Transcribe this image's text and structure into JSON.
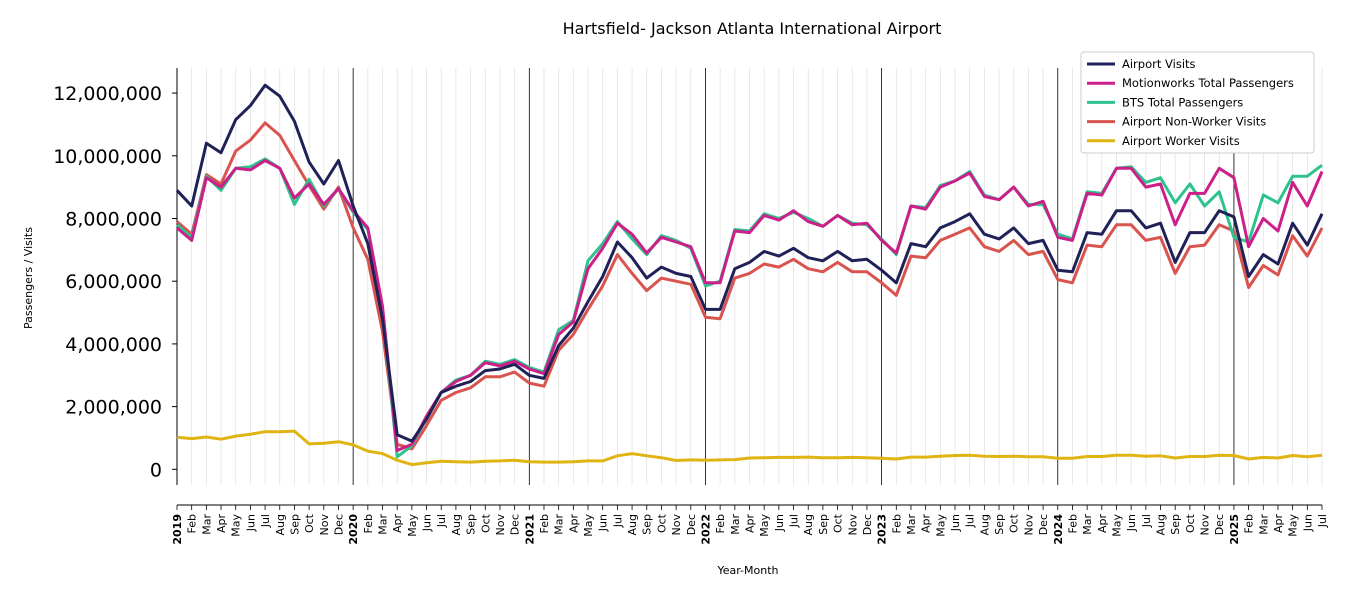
{
  "chart_data": {
    "type": "line",
    "title": "Hartsfield- Jackson Atlanta International Airport",
    "xlabel": "Year-Month",
    "ylabel": "Passengers / Visits",
    "ylim": [
      -500000,
      12800000
    ],
    "yticks": [
      0,
      2000000,
      4000000,
      6000000,
      8000000,
      10000000,
      12000000
    ],
    "ytick_labels": [
      "0",
      "2,000,000",
      "4,000,000",
      "6,000,000",
      "8,000,000",
      "10,000,000",
      "12,000,000"
    ],
    "grid": "vertical monthly lines",
    "legend_position": "top-right",
    "month_labels": [
      "Feb",
      "Mar",
      "Apr",
      "May",
      "Jun",
      "Jul",
      "Aug",
      "Sep",
      "Oct",
      "Nov",
      "Dec"
    ],
    "years": [
      "2019",
      "2020",
      "2021",
      "2022",
      "2023",
      "2024",
      "2025"
    ],
    "start": "2019-01",
    "end": "2025-07",
    "series": [
      {
        "name": "Airport Visits",
        "color": "#1f2157",
        "values": [
          8900000,
          8400000,
          10400000,
          10100000,
          11150000,
          11600000,
          12250000,
          11900000,
          11100000,
          9800000,
          9100000,
          9850000,
          8400000,
          7200000,
          4800000,
          1100000,
          900000,
          1600000,
          2450000,
          2650000,
          2800000,
          3150000,
          3200000,
          3350000,
          3000000,
          2900000,
          3950000,
          4500000,
          5350000,
          6150000,
          7250000,
          6750000,
          6100000,
          6450000,
          6250000,
          6150000,
          5100000,
          5100000,
          6400000,
          6600000,
          6950000,
          6800000,
          7050000,
          6750000,
          6650000,
          6950000,
          6650000,
          6700000,
          6350000,
          5950000,
          7200000,
          7100000,
          7700000,
          7900000,
          8150000,
          7500000,
          7350000,
          7700000,
          7200000,
          7300000,
          6350000,
          6300000,
          7550000,
          7500000,
          8250000,
          8250000,
          7700000,
          7850000,
          6600000,
          7550000,
          7550000,
          8250000,
          8050000,
          6150000,
          6850000,
          6550000,
          7850000,
          7150000,
          8150000
        ]
      },
      {
        "name": "Motionworks Total Passengers",
        "color": "#cc1f8a",
        "values": [
          7700000,
          7300000,
          9300000,
          9000000,
          9600000,
          9550000,
          9850000,
          9600000,
          8650000,
          9100000,
          8450000,
          8950000,
          8250000,
          7700000,
          5200000,
          600000,
          800000,
          1700000,
          2450000,
          2800000,
          3000000,
          3400000,
          3300000,
          3450000,
          3200000,
          3050000,
          4300000,
          4700000,
          6400000,
          7050000,
          7850000,
          7500000,
          6900000,
          7400000,
          7250000,
          7100000,
          5950000,
          5950000,
          7600000,
          7550000,
          8100000,
          7950000,
          8250000,
          7900000,
          7750000,
          8100000,
          7800000,
          7850000,
          7300000,
          6900000,
          8400000,
          8300000,
          9000000,
          9200000,
          9450000,
          8700000,
          8600000,
          9000000,
          8400000,
          8550000,
          7400000,
          7300000,
          8800000,
          8750000,
          9600000,
          9600000,
          9000000,
          9100000,
          7800000,
          8800000,
          8800000,
          9600000,
          9300000,
          7100000,
          8000000,
          7600000,
          9150000,
          8400000,
          9500000
        ]
      },
      {
        "name": "BTS Total Passengers",
        "color": "#2ec28d",
        "values": [
          7800000,
          7400000,
          9350000,
          8900000,
          9600000,
          9650000,
          9900000,
          9600000,
          8450000,
          9250000,
          8400000,
          8950000,
          8200000,
          7650000,
          5100000,
          400000,
          750000,
          1650000,
          2450000,
          2850000,
          3000000,
          3450000,
          3350000,
          3500000,
          3250000,
          3100000,
          4450000,
          4750000,
          6650000,
          7200000,
          7900000,
          7350000,
          6850000,
          7450000,
          7300000,
          7050000,
          5850000,
          6000000,
          7650000,
          7600000,
          8150000,
          8000000,
          8200000,
          8000000,
          7750000,
          8100000,
          7850000,
          7800000,
          7350000,
          6850000,
          8400000,
          8350000,
          9050000,
          9200000,
          9500000,
          8750000,
          8600000,
          9000000,
          8450000,
          8450000,
          7500000,
          7350000,
          8850000,
          8800000,
          9600000,
          9650000,
          9150000,
          9300000,
          8500000,
          9100000,
          8400000,
          8850000,
          7400000,
          7250000,
          8750000,
          8500000,
          9350000,
          9350000,
          9700000
        ]
      },
      {
        "name": "Airport Non-Worker Visits",
        "color": "#d9534f",
        "values": [
          7900000,
          7500000,
          9400000,
          9100000,
          10150000,
          10500000,
          11050000,
          10650000,
          9850000,
          9050000,
          8300000,
          9000000,
          7700000,
          6700000,
          4400000,
          800000,
          650000,
          1400000,
          2200000,
          2450000,
          2600000,
          2950000,
          2950000,
          3100000,
          2750000,
          2650000,
          3800000,
          4300000,
          5100000,
          5850000,
          6850000,
          6250000,
          5700000,
          6100000,
          6000000,
          5900000,
          4850000,
          4800000,
          6100000,
          6250000,
          6550000,
          6450000,
          6700000,
          6400000,
          6300000,
          6600000,
          6300000,
          6300000,
          5950000,
          5550000,
          6800000,
          6750000,
          7300000,
          7500000,
          7700000,
          7100000,
          6950000,
          7300000,
          6850000,
          6950000,
          6050000,
          5950000,
          7150000,
          7100000,
          7800000,
          7800000,
          7300000,
          7400000,
          6250000,
          7100000,
          7150000,
          7800000,
          7600000,
          5800000,
          6500000,
          6200000,
          7450000,
          6800000,
          7700000
        ]
      },
      {
        "name": "Airport Worker Visits",
        "color": "#e0b413",
        "values": [
          1020000,
          980000,
          1030000,
          960000,
          1060000,
          1120000,
          1200000,
          1200000,
          1220000,
          810000,
          830000,
          880000,
          780000,
          580000,
          500000,
          290000,
          150000,
          210000,
          260000,
          240000,
          230000,
          260000,
          270000,
          290000,
          240000,
          230000,
          230000,
          240000,
          270000,
          270000,
          430000,
          500000,
          430000,
          370000,
          280000,
          300000,
          290000,
          300000,
          310000,
          360000,
          370000,
          380000,
          380000,
          390000,
          370000,
          370000,
          380000,
          370000,
          350000,
          330000,
          390000,
          390000,
          420000,
          440000,
          450000,
          420000,
          410000,
          420000,
          400000,
          400000,
          350000,
          350000,
          410000,
          410000,
          450000,
          450000,
          420000,
          430000,
          360000,
          410000,
          410000,
          450000,
          440000,
          330000,
          380000,
          360000,
          440000,
          400000,
          450000
        ]
      }
    ]
  }
}
